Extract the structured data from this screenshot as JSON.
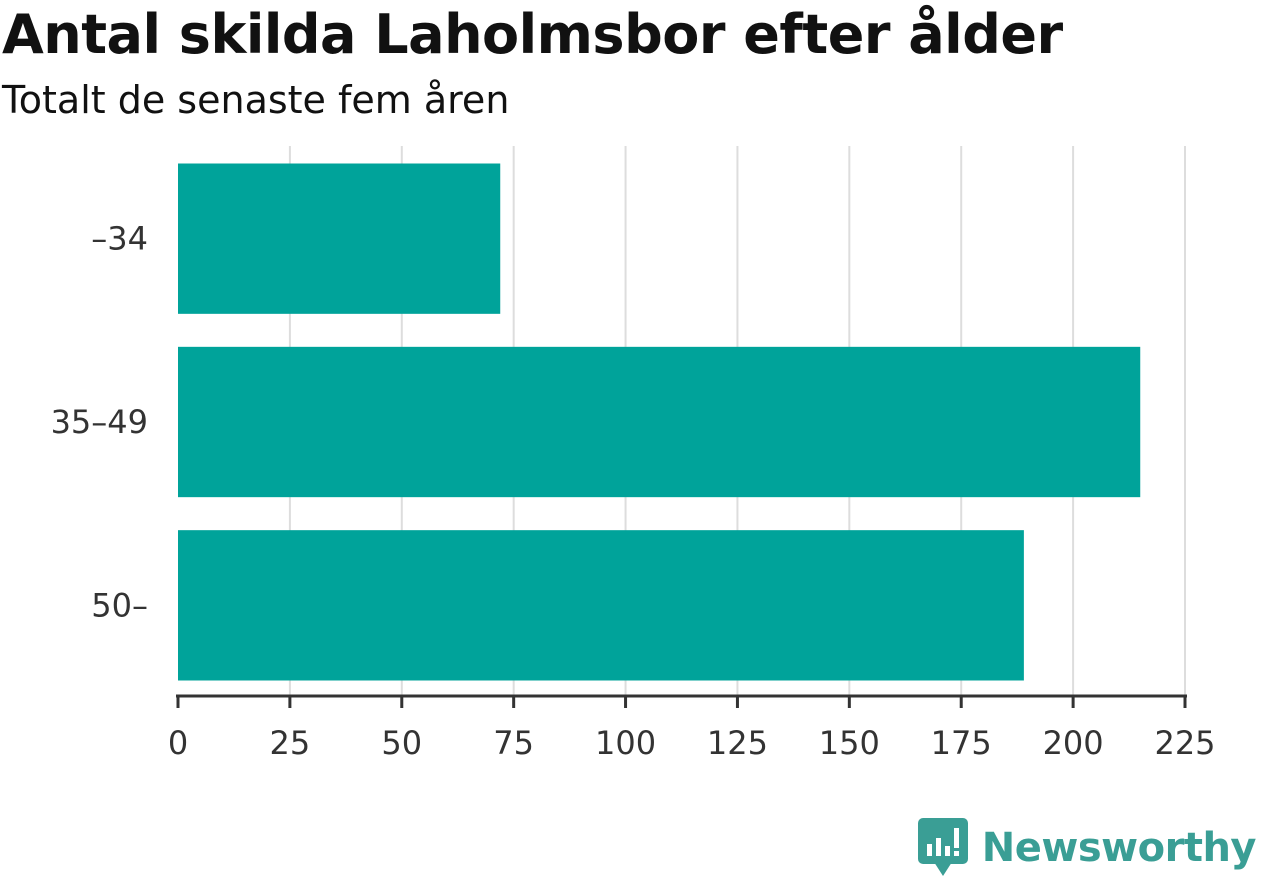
{
  "header": {
    "title": "Antal skilda Laholmsbor efter ålder",
    "subtitle": "Totalt de senaste fem åren"
  },
  "brand": {
    "name": "Newsworthy",
    "color": "#3a9e95"
  },
  "colors": {
    "bar": "#00a39a",
    "grid": "#dddddd",
    "axis": "#333333",
    "text": "#111111"
  },
  "chart_data": {
    "type": "bar",
    "orientation": "horizontal",
    "title": "Antal skilda Laholmsbor efter ålder",
    "subtitle": "Totalt de senaste fem åren",
    "xlabel": "",
    "ylabel": "",
    "categories": [
      "–34",
      "35–49",
      "50–"
    ],
    "values": [
      72,
      215,
      189
    ],
    "xlim": [
      0,
      225
    ],
    "xticks": [
      0,
      25,
      50,
      75,
      100,
      125,
      150,
      175,
      200,
      225
    ],
    "grid": "vertical",
    "legend": "none"
  }
}
